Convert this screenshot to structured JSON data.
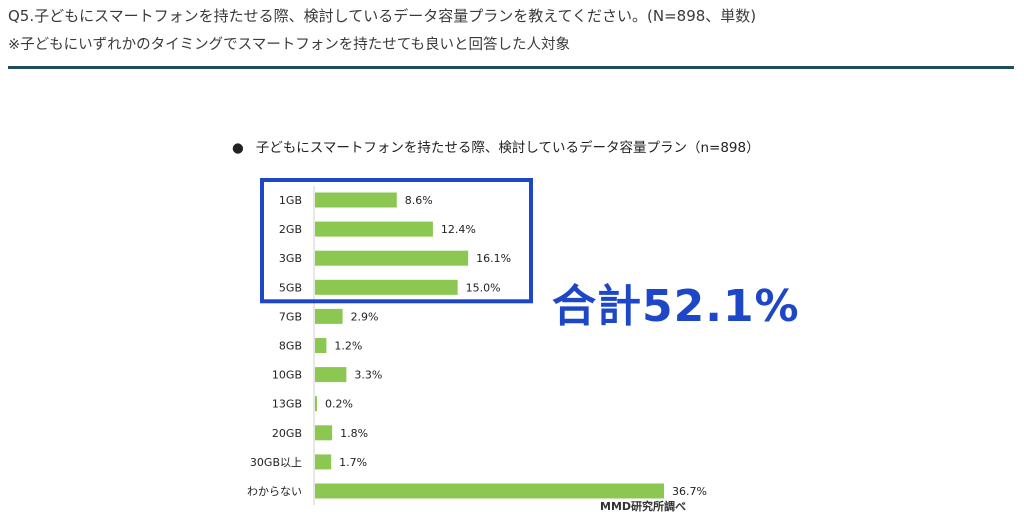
{
  "header": {
    "question": "Q5.子どもにスマートフォンを持たせる際、検討しているデータ容量プランを教えてください。(N=898、単数)",
    "note": "※子どもにいずれかのタイミングでスマートフォンを持たせても良いと回答した人対象"
  },
  "chart_data": {
    "type": "bar",
    "orientation": "horizontal",
    "title": "子どもにスマートフォンを持たせる際、検討しているデータ容量プラン（n=898）",
    "title_bullet": "●",
    "categories": [
      "1GB",
      "2GB",
      "3GB",
      "5GB",
      "7GB",
      "8GB",
      "10GB",
      "13GB",
      "20GB",
      "30GB以上",
      "わからない"
    ],
    "values": [
      8.6,
      12.4,
      16.1,
      15.0,
      2.9,
      1.2,
      3.3,
      0.2,
      1.8,
      1.7,
      36.7
    ],
    "value_labels": [
      "8.6%",
      "12.4%",
      "16.1%",
      "15.0%",
      "2.9%",
      "1.2%",
      "3.3%",
      "0.2%",
      "1.8%",
      "1.7%",
      "36.7%"
    ],
    "bar_color": "#8cc751",
    "xlim": [
      0,
      40
    ],
    "grid": false,
    "highlight": {
      "categories": [
        "1GB",
        "2GB",
        "3GB",
        "5GB"
      ],
      "text": "合計52.1%",
      "color": "#1d47c7"
    },
    "source": "MMD研究所調べ"
  }
}
